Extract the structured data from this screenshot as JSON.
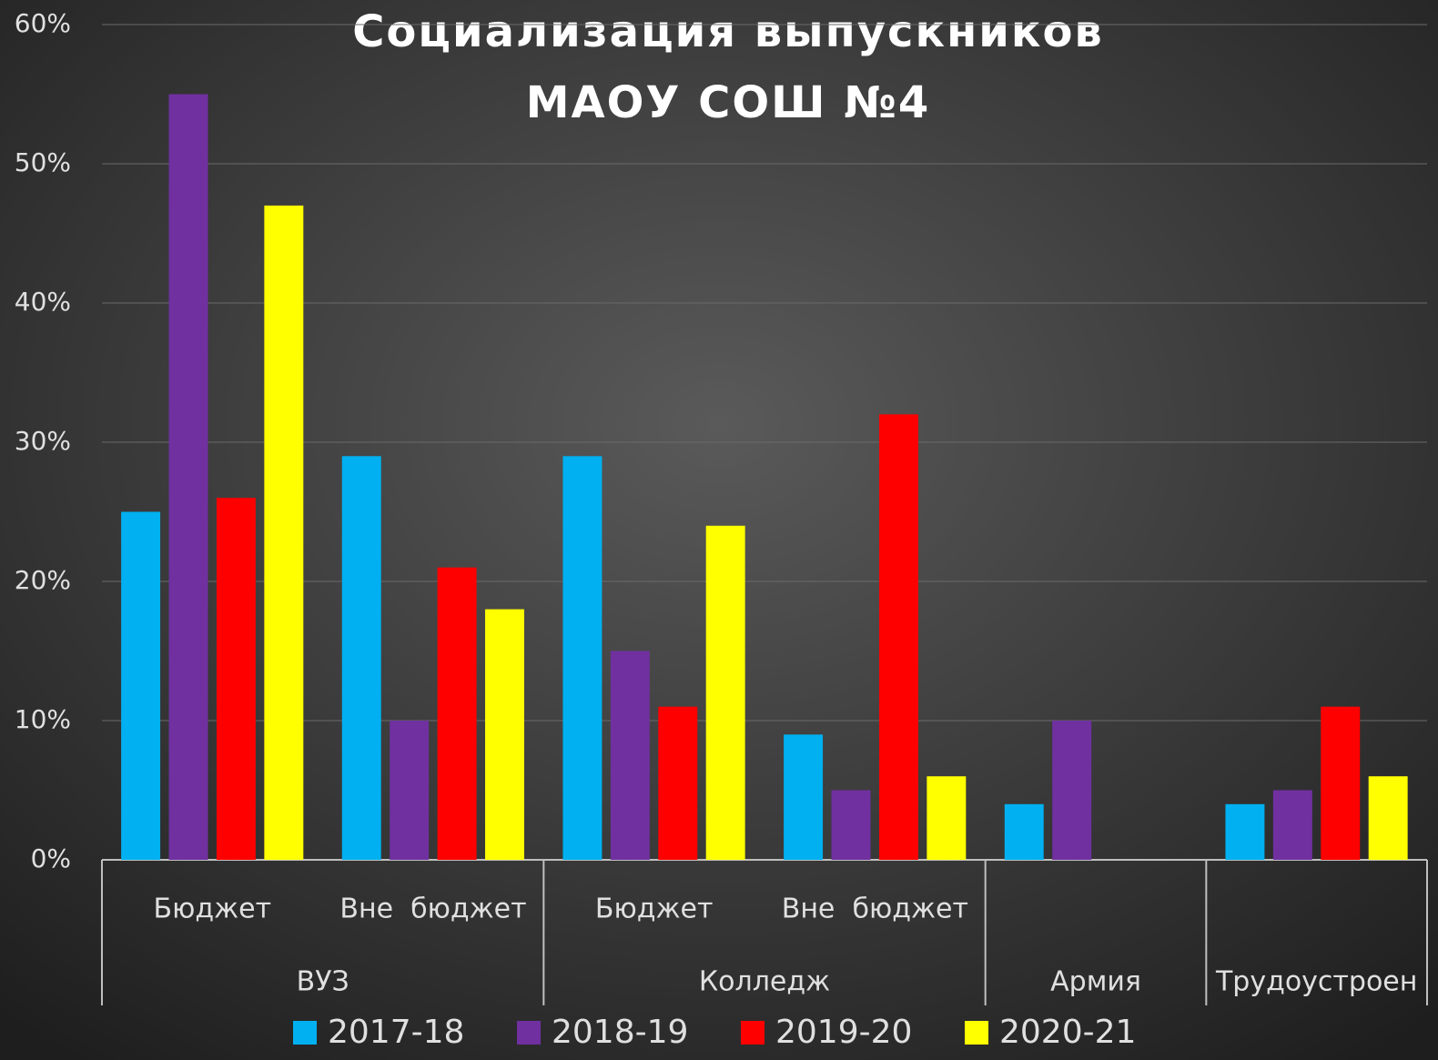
{
  "chart_data": {
    "type": "bar",
    "title": [
      "Социализация выпускников",
      "МАОУ СОШ №4"
    ],
    "categories": [
      "Бюджет",
      "Вне  бюджет",
      "Бюджет",
      "Вне  бюджет",
      null,
      null
    ],
    "category_groups": [
      {
        "label": "ВУЗ",
        "span": 2
      },
      {
        "label": "Колледж",
        "span": 2
      },
      {
        "label": "Армия",
        "span": 1
      },
      {
        "label": "Трудоустроен",
        "span": 1
      }
    ],
    "series": [
      {
        "name": "2017-18",
        "color": "#00b0f0",
        "values": [
          25,
          29,
          29,
          9,
          4,
          4
        ]
      },
      {
        "name": "2018-19",
        "color": "#7030a0",
        "values": [
          55,
          10,
          15,
          5,
          10,
          5
        ]
      },
      {
        "name": "2019-20",
        "color": "#ff0000",
        "values": [
          26,
          21,
          11,
          32,
          null,
          11
        ]
      },
      {
        "name": "2020-21",
        "color": "#ffff00",
        "values": [
          47,
          18,
          24,
          6,
          null,
          6
        ]
      }
    ],
    "ylim": [
      0,
      60
    ],
    "yticks": [
      {
        "value": 0,
        "label": "0%"
      },
      {
        "value": 10,
        "label": "10%"
      },
      {
        "value": 20,
        "label": "20%"
      },
      {
        "value": 30,
        "label": "30%"
      },
      {
        "value": 40,
        "label": "40%"
      },
      {
        "value": 50,
        "label": "50%"
      },
      {
        "value": 60,
        "label": "60%"
      }
    ],
    "grid": true,
    "legend": "bottom"
  }
}
